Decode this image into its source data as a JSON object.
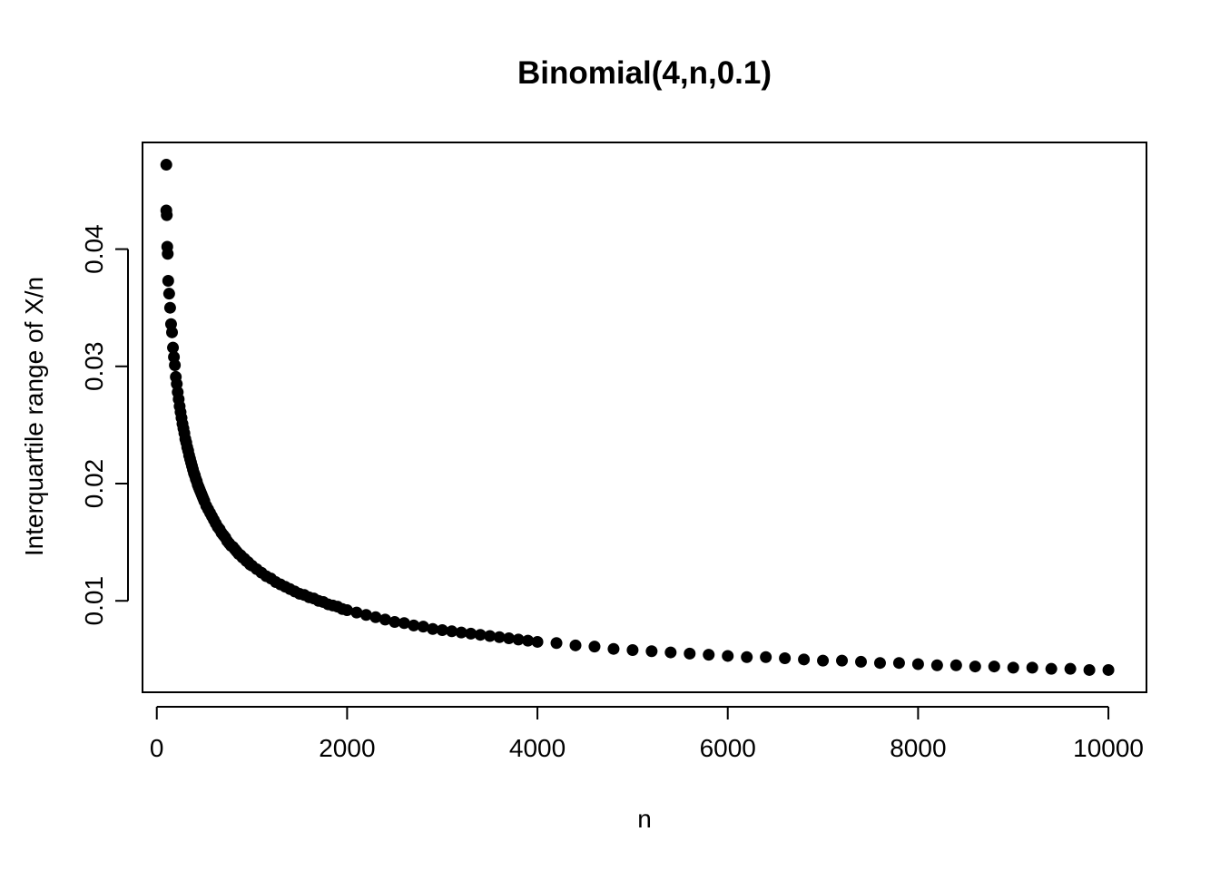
{
  "chart_data": {
    "type": "scatter",
    "title": "Binomial(4,n,0.1)",
    "xlabel": "n",
    "ylabel": "Interquartile range of X/n",
    "xlim": [
      -150,
      10400
    ],
    "ylim": [
      0.0022,
      0.0491
    ],
    "xticks": [
      0,
      2000,
      4000,
      6000,
      8000,
      10000
    ],
    "xtick_labels": [
      "0",
      "2000",
      "4000",
      "6000",
      "8000",
      "10000"
    ],
    "yticks": [
      0.01,
      0.02,
      0.03,
      0.04
    ],
    "ytick_labels": [
      "0.01",
      "0.02",
      "0.03",
      "0.04"
    ],
    "grid": false,
    "legend": "none",
    "series": [
      {
        "color": "#000000",
        "marker": "filled-circle",
        "x": [
          100,
          100,
          105,
          110,
          115,
          120,
          130,
          140,
          150,
          160,
          170,
          180,
          190,
          200,
          210,
          220,
          230,
          240,
          250,
          260,
          270,
          280,
          290,
          300,
          310,
          320,
          330,
          340,
          350,
          360,
          370,
          380,
          390,
          400,
          410,
          420,
          430,
          440,
          450,
          460,
          470,
          480,
          490,
          500,
          520,
          540,
          560,
          580,
          600,
          620,
          640,
          660,
          680,
          700,
          720,
          740,
          760,
          780,
          800,
          820,
          840,
          860,
          880,
          900,
          920,
          940,
          960,
          980,
          1000,
          1050,
          1100,
          1150,
          1200,
          1250,
          1300,
          1350,
          1400,
          1450,
          1500,
          1550,
          1600,
          1650,
          1700,
          1750,
          1800,
          1850,
          1900,
          1950,
          2000,
          2100,
          2200,
          2300,
          2400,
          2500,
          2600,
          2700,
          2800,
          2900,
          3000,
          3100,
          3200,
          3300,
          3400,
          3500,
          3600,
          3700,
          3800,
          3900,
          4000,
          4200,
          4400,
          4600,
          4800,
          5000,
          5200,
          5400,
          5600,
          5800,
          6000,
          6200,
          6400,
          6600,
          6800,
          7000,
          7200,
          7400,
          7600,
          7800,
          8000,
          8200,
          8400,
          8600,
          8800,
          9000,
          9200,
          9400,
          9600,
          9800,
          10000
        ],
        "y": [
          0.0472,
          0.0433,
          0.0429,
          0.0402,
          0.0396,
          0.0373,
          0.0362,
          0.035,
          0.0336,
          0.0329,
          0.0316,
          0.0308,
          0.0301,
          0.0291,
          0.0285,
          0.0278,
          0.0272,
          0.0266,
          0.0261,
          0.0256,
          0.0251,
          0.0247,
          0.0243,
          0.0238,
          0.0235,
          0.0231,
          0.0228,
          0.0224,
          0.0221,
          0.0218,
          0.0215,
          0.0212,
          0.0209,
          0.0207,
          0.0204,
          0.0202,
          0.0199,
          0.0197,
          0.0195,
          0.0193,
          0.0191,
          0.0189,
          0.0187,
          0.0185,
          0.0181,
          0.0178,
          0.0175,
          0.0172,
          0.0169,
          0.0166,
          0.0163,
          0.0161,
          0.0158,
          0.0156,
          0.0154,
          0.0151,
          0.0149,
          0.0147,
          0.0146,
          0.0144,
          0.0142,
          0.014,
          0.0139,
          0.0137,
          0.0136,
          0.0134,
          0.0133,
          0.0131,
          0.013,
          0.0127,
          0.0124,
          0.0121,
          0.0119,
          0.0116,
          0.0114,
          0.0112,
          0.011,
          0.0108,
          0.0106,
          0.0105,
          0.0103,
          0.0102,
          0.01,
          0.0099,
          0.0097,
          0.0096,
          0.0095,
          0.0093,
          0.0092,
          0.009,
          0.0088,
          0.0086,
          0.0084,
          0.0082,
          0.0081,
          0.0079,
          0.0078,
          0.0076,
          0.0075,
          0.0074,
          0.0073,
          0.0072,
          0.0071,
          0.007,
          0.0069,
          0.0068,
          0.0067,
          0.0066,
          0.0065,
          0.0064,
          0.0062,
          0.0061,
          0.0059,
          0.0058,
          0.0057,
          0.0056,
          0.0055,
          0.0054,
          0.0053,
          0.0052,
          0.0052,
          0.0051,
          0.005,
          0.0049,
          0.0049,
          0.0048,
          0.0047,
          0.0047,
          0.0046,
          0.0045,
          0.0045,
          0.0044,
          0.0044,
          0.0043,
          0.0043,
          0.0042,
          0.0042,
          0.0041,
          0.0041
        ]
      }
    ]
  }
}
